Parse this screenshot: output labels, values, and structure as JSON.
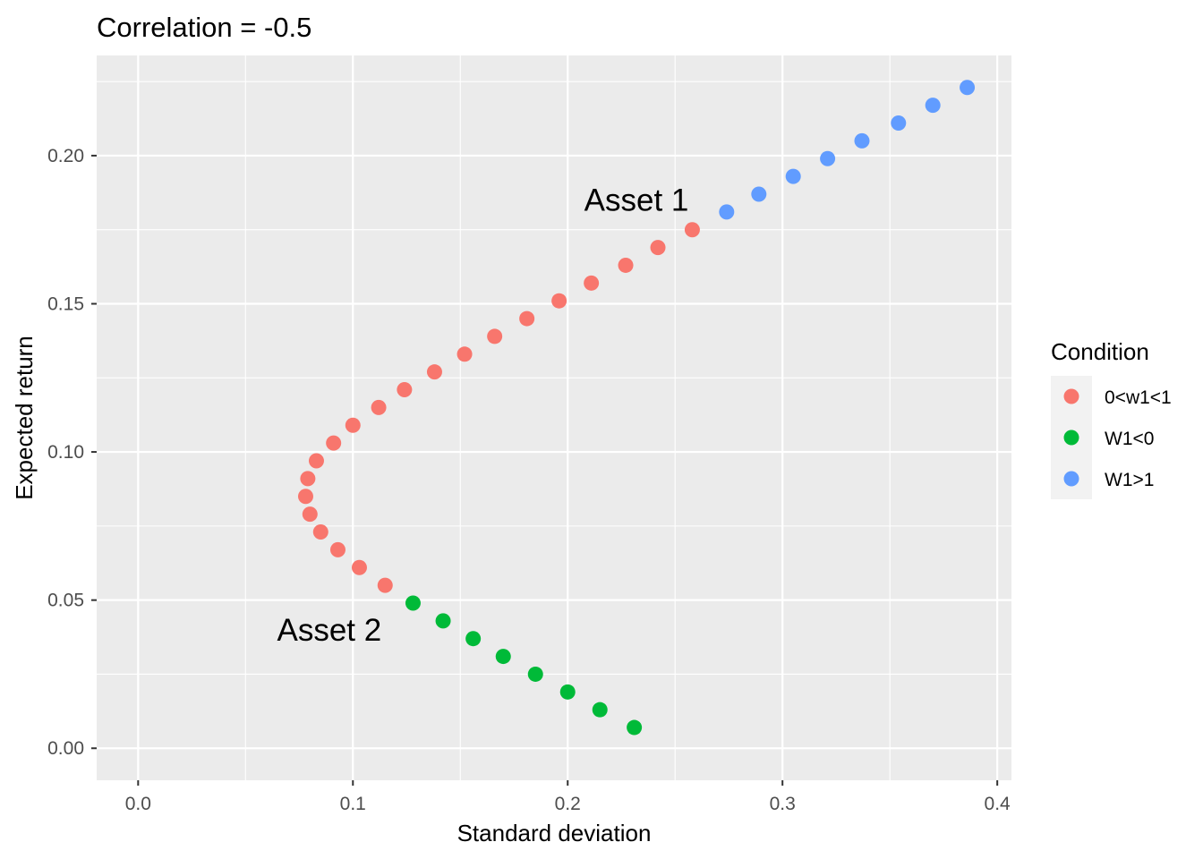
{
  "chart_data": {
    "type": "scatter",
    "title": "Correlation =  -0.5",
    "xlabel": "Standard deviation",
    "ylabel": "Expected return",
    "xlim": [
      -0.0193,
      0.4066
    ],
    "ylim": [
      -0.0108,
      0.2338
    ],
    "x_ticks": [
      0.0,
      0.1,
      0.2,
      0.3,
      0.4
    ],
    "x_tick_labels": [
      "0.0",
      "0.1",
      "0.2",
      "0.3",
      "0.4"
    ],
    "y_ticks": [
      0.0,
      0.05,
      0.1,
      0.15,
      0.2
    ],
    "y_tick_labels": [
      "0.00",
      "0.05",
      "0.10",
      "0.15",
      "0.20"
    ],
    "grid": true,
    "legend": {
      "title": "Condition",
      "placement": "right",
      "entries": [
        {
          "label": "0<w1<1",
          "color": "#F8766D"
        },
        {
          "label": "W1<0",
          "color": "#00BA38"
        },
        {
          "label": "W1>1",
          "color": "#619CFF"
        }
      ]
    },
    "series": [
      {
        "name": "0<w1<1",
        "color": "#F8766D",
        "points": [
          [
            0.258,
            0.175
          ],
          [
            0.242,
            0.169
          ],
          [
            0.227,
            0.163
          ],
          [
            0.211,
            0.157
          ],
          [
            0.196,
            0.151
          ],
          [
            0.181,
            0.145
          ],
          [
            0.166,
            0.139
          ],
          [
            0.152,
            0.133
          ],
          [
            0.138,
            0.127
          ],
          [
            0.124,
            0.121
          ],
          [
            0.112,
            0.115
          ],
          [
            0.1,
            0.109
          ],
          [
            0.091,
            0.103
          ],
          [
            0.083,
            0.097
          ],
          [
            0.079,
            0.091
          ],
          [
            0.078,
            0.085
          ],
          [
            0.08,
            0.079
          ],
          [
            0.085,
            0.073
          ],
          [
            0.093,
            0.067
          ],
          [
            0.103,
            0.061
          ],
          [
            0.115,
            0.055
          ]
        ]
      },
      {
        "name": "W1<0",
        "color": "#00BA38",
        "points": [
          [
            0.128,
            0.049
          ],
          [
            0.142,
            0.043
          ],
          [
            0.156,
            0.037
          ],
          [
            0.17,
            0.031
          ],
          [
            0.185,
            0.025
          ],
          [
            0.2,
            0.019
          ],
          [
            0.215,
            0.013
          ],
          [
            0.231,
            0.007
          ]
        ]
      },
      {
        "name": "W1>1",
        "color": "#619CFF",
        "points": [
          [
            0.274,
            0.181
          ],
          [
            0.289,
            0.187
          ],
          [
            0.305,
            0.193
          ],
          [
            0.321,
            0.199
          ],
          [
            0.337,
            0.205
          ],
          [
            0.354,
            0.211
          ],
          [
            0.37,
            0.217
          ],
          [
            0.386,
            0.223
          ]
        ]
      }
    ],
    "annotations": [
      {
        "text": "Asset 1",
        "x": 0.232,
        "y": 0.185
      },
      {
        "text": "Asset 2",
        "x": 0.089,
        "y": 0.04
      }
    ],
    "panel_color": "#EBEBEB",
    "grid_color": "#FFFFFF"
  }
}
